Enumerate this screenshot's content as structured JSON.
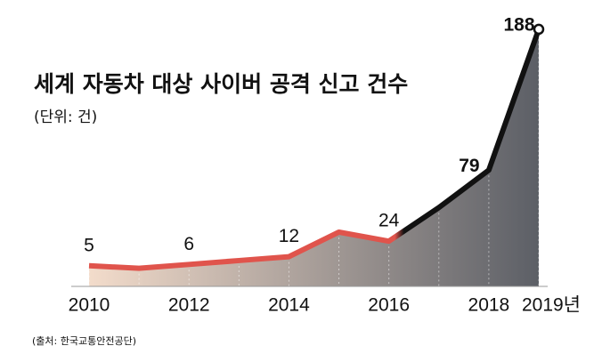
{
  "chart_data": {
    "type": "area",
    "title": "세계 자동차 대상 사이버 공격 신고 건수",
    "subtitle": "(단위: 건)",
    "source": "(출처: 한국교통안전공단)",
    "categories": [
      "2010",
      null,
      "2012",
      null,
      "2014",
      null,
      "2016",
      null,
      "2018",
      "2019년"
    ],
    "values": [
      5,
      3,
      6,
      9,
      12,
      31,
      24,
      50,
      79,
      188
    ],
    "value_labels": [
      5,
      null,
      6,
      null,
      12,
      null,
      24,
      null,
      79,
      188
    ],
    "ylim": [
      -11,
      190
    ],
    "line_colors": [
      "#e0544c",
      "#111111"
    ],
    "area_colors": [
      "#f3dccb",
      "#5c5f66"
    ],
    "grid": true
  }
}
